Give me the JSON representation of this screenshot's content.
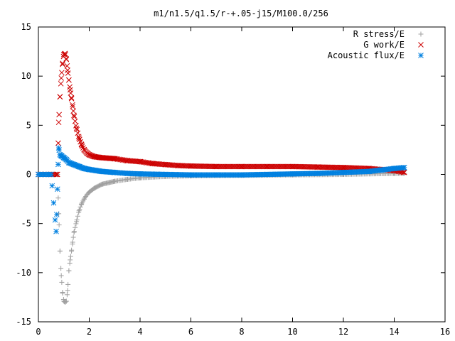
{
  "chart_data": {
    "type": "scatter",
    "title": "m1/n1.5/q1.5/r-+.05-j15/M100.0/256",
    "xlabel": "",
    "ylabel": "",
    "xlim": [
      0,
      16
    ],
    "ylim": [
      -15,
      15
    ],
    "x_ticks": [
      "0",
      "2",
      "4",
      "6",
      "8",
      "10",
      "12",
      "14",
      "16"
    ],
    "y_ticks": [
      "15",
      "10",
      "5",
      "0",
      "-5",
      "-10",
      "-15"
    ],
    "grid": false,
    "legend_position": "top-right",
    "series": [
      {
        "name": "R stress/E",
        "marker": "plus",
        "color": "#a0a0a0",
        "x": [
          0.0,
          0.5,
          0.75,
          0.8,
          0.85,
          0.9,
          0.95,
          1.0,
          1.05,
          1.1,
          1.15,
          1.2,
          1.25,
          1.3,
          1.35,
          1.4,
          1.5,
          1.6,
          1.7,
          1.8,
          1.9,
          2.0,
          2.2,
          2.5,
          3.0,
          3.5,
          4.0,
          5.0,
          6.0,
          8.0,
          10.0,
          12.0,
          14.0,
          14.4
        ],
        "y": [
          0.0,
          0.0,
          0.0,
          -4.0,
          -7.8,
          -10.3,
          -12.0,
          -12.9,
          -13.0,
          -12.9,
          -11.8,
          -9.8,
          -8.7,
          -7.8,
          -6.9,
          -5.9,
          -4.8,
          -3.7,
          -3.0,
          -2.5,
          -2.1,
          -1.8,
          -1.4,
          -1.0,
          -0.7,
          -0.5,
          -0.35,
          -0.2,
          -0.15,
          -0.1,
          -0.05,
          0.0,
          0.1,
          0.1
        ]
      },
      {
        "name": "G work/E",
        "marker": "cross",
        "color": "#cc0000",
        "x": [
          0.0,
          0.5,
          0.75,
          0.8,
          0.85,
          0.9,
          0.95,
          1.0,
          1.05,
          1.1,
          1.15,
          1.2,
          1.25,
          1.3,
          1.35,
          1.4,
          1.5,
          1.6,
          1.7,
          1.8,
          1.9,
          2.0,
          2.2,
          2.5,
          3.0,
          3.5,
          4.0,
          4.5,
          5.0,
          5.5,
          6.0,
          7.0,
          8.0,
          9.0,
          10.0,
          11.0,
          12.0,
          13.0,
          14.0,
          14.4
        ],
        "y": [
          0.0,
          0.0,
          0.0,
          5.3,
          7.9,
          9.8,
          11.2,
          12.2,
          12.3,
          11.7,
          10.6,
          9.6,
          8.6,
          7.8,
          6.9,
          6.0,
          4.7,
          3.7,
          3.0,
          2.5,
          2.2,
          2.0,
          1.8,
          1.7,
          1.6,
          1.4,
          1.3,
          1.1,
          1.0,
          0.9,
          0.85,
          0.8,
          0.8,
          0.8,
          0.8,
          0.75,
          0.7,
          0.6,
          0.4,
          0.2
        ]
      },
      {
        "name": "Acoustic flux/E",
        "marker": "star",
        "color": "#0080e0",
        "x": [
          0.0,
          0.5,
          0.7,
          0.75,
          0.8,
          0.85,
          0.9,
          1.0,
          1.1,
          1.2,
          1.4,
          1.6,
          1.8,
          2.0,
          2.5,
          3.0,
          3.5,
          4.0,
          5.0,
          6.0,
          7.0,
          8.0,
          9.0,
          10.0,
          11.0,
          12.0,
          13.0,
          13.5,
          14.0,
          14.4
        ],
        "y": [
          0.0,
          0.0,
          -5.8,
          -1.5,
          2.7,
          2.0,
          1.9,
          1.7,
          1.5,
          1.2,
          1.0,
          0.8,
          0.6,
          0.5,
          0.3,
          0.2,
          0.1,
          0.05,
          0.0,
          -0.05,
          -0.05,
          -0.05,
          0.0,
          0.05,
          0.1,
          0.2,
          0.3,
          0.45,
          0.6,
          0.7
        ]
      }
    ]
  }
}
